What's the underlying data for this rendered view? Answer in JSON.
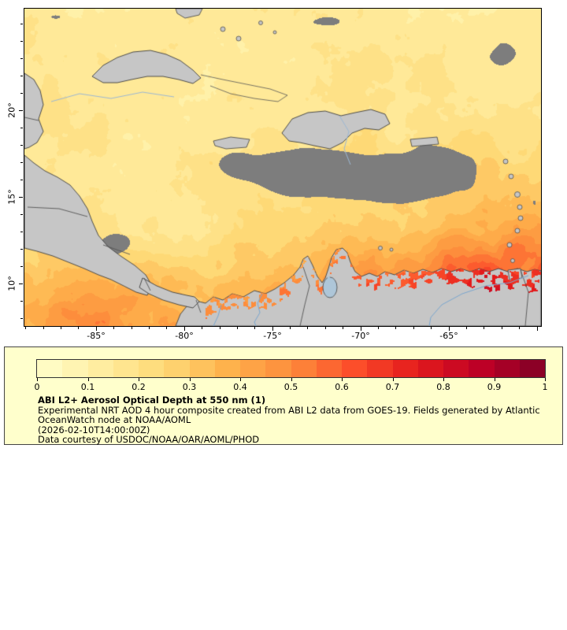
{
  "map": {
    "x_tick_labels": [
      "-85°",
      "-80°",
      "-75°",
      "-70°",
      "-65°"
    ],
    "y_tick_labels": [
      "20°",
      "15°",
      "10°"
    ]
  },
  "legend": {
    "background": "#ffffcc",
    "colorbar_ticks": [
      "0",
      "0.1",
      "0.2",
      "0.3",
      "0.4",
      "0.5",
      "0.6",
      "0.7",
      "0.8",
      "0.9",
      "1"
    ],
    "title": "ABI L2+ Aerosol Optical Depth at 550 nm (1)",
    "lines": [
      "Experimental NRT AOD 4 hour composite created from ABI L2 data from GOES-19. Fields generated by Atlantic",
      "OceanWatch node at NOAA/AOML",
      "(2026-02-10T14:00:00Z)",
      "Data courtesy of USDOC/NOAA/OAR/AOML/PHOD"
    ]
  },
  "chart_data": {
    "type": "heatmap",
    "title": "ABI L2+ Aerosol Optical Depth at 550 nm (1)",
    "variable": "Aerosol Optical Depth at 550 nm",
    "source": "ABI L2 data from GOES-19",
    "timestamp": "2026-02-10T14:00:00Z",
    "colorbar_range": [
      0,
      1
    ],
    "colorbar_tick_values": [
      0,
      0.1,
      0.2,
      0.3,
      0.4,
      0.5,
      0.6,
      0.7,
      0.8,
      0.9,
      1
    ],
    "colormap_stops": [
      "#ffffcc",
      "#ffeda0",
      "#fed976",
      "#feb24c",
      "#fd8d3c",
      "#fc4e2a",
      "#e31a1c",
      "#bd0026",
      "#800026"
    ],
    "lon_tick_values_deg": [
      -85,
      -80,
      -75,
      -70,
      -65
    ],
    "lat_tick_values_deg": [
      20,
      15,
      10
    ],
    "approx_lon_range_deg": [
      -89.1,
      -59.8
    ],
    "approx_lat_range_deg": [
      7.6,
      25.9
    ],
    "no_data_color": "#7d7d7d",
    "land_color": "#c6c6c6",
    "legend_background": "#ffffcc",
    "grid": false,
    "legend_position": "bottom"
  }
}
